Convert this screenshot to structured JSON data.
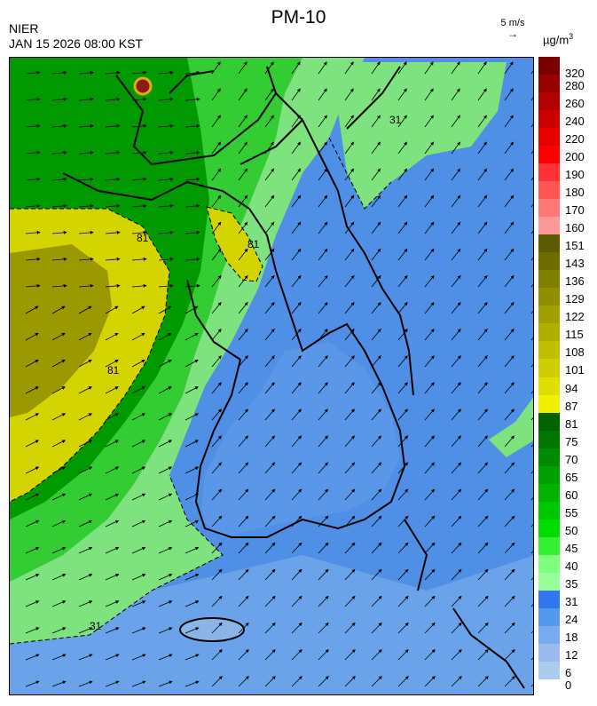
{
  "header": {
    "title": "PM-10",
    "source": "NIER",
    "datetime": "JAN 15 2026 08:00 KST",
    "wind_scale_label": "5 m/s",
    "unit_base": "µg/m",
    "unit_exp": "3"
  },
  "map": {
    "contour_labels": [
      "81",
      "81",
      "81",
      "31",
      "31"
    ],
    "wind_direction": "northeastward over sea, eastward in northwest",
    "colors": {
      "sea_low": "#4f8fe6",
      "land_mid": "#33cc33",
      "yellow_band": "#d4d400",
      "olive_band": "#8a8a00",
      "light_green": "#7ee27e",
      "border": "#000000"
    }
  },
  "colorbar": {
    "levels": [
      {
        "label": "320",
        "color": "#7a0000"
      },
      {
        "label": "280",
        "color": "#990000"
      },
      {
        "label": "260",
        "color": "#b30000"
      },
      {
        "label": "240",
        "color": "#cc0000"
      },
      {
        "label": "220",
        "color": "#e60000"
      },
      {
        "label": "200",
        "color": "#ff0000"
      },
      {
        "label": "190",
        "color": "#ff3333"
      },
      {
        "label": "180",
        "color": "#ff5555"
      },
      {
        "label": "170",
        "color": "#ff7777"
      },
      {
        "label": "160",
        "color": "#ff9999"
      },
      {
        "label": "151",
        "color": "#5c5c00"
      },
      {
        "label": "143",
        "color": "#6e6e00"
      },
      {
        "label": "136",
        "color": "#7f7f00"
      },
      {
        "label": "129",
        "color": "#8f8f00"
      },
      {
        "label": "122",
        "color": "#9f9f00"
      },
      {
        "label": "115",
        "color": "#afaf00"
      },
      {
        "label": "108",
        "color": "#bfbf00"
      },
      {
        "label": "101",
        "color": "#cfcf00"
      },
      {
        "label": "94",
        "color": "#dfdf00"
      },
      {
        "label": "87",
        "color": "#f0f000"
      },
      {
        "label": "81",
        "color": "#006400"
      },
      {
        "label": "75",
        "color": "#007800"
      },
      {
        "label": "70",
        "color": "#008c00"
      },
      {
        "label": "65",
        "color": "#00a000"
      },
      {
        "label": "60",
        "color": "#00b400"
      },
      {
        "label": "55",
        "color": "#00c800"
      },
      {
        "label": "50",
        "color": "#00dc00"
      },
      {
        "label": "45",
        "color": "#33f033"
      },
      {
        "label": "40",
        "color": "#7fff7f"
      },
      {
        "label": "35",
        "color": "#99ff99"
      },
      {
        "label": "31",
        "color": "#3377ee"
      },
      {
        "label": "24",
        "color": "#5599ee"
      },
      {
        "label": "18",
        "color": "#77aaee"
      },
      {
        "label": "12",
        "color": "#99bbee"
      },
      {
        "label": "6",
        "color": "#aaccee"
      },
      {
        "label": "0",
        "color": "#aaccee"
      }
    ]
  }
}
